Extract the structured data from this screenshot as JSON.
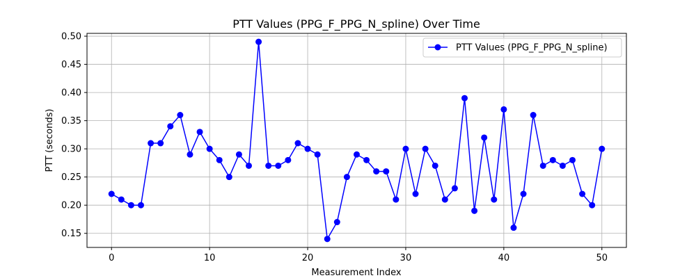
{
  "chart_data": {
    "type": "line",
    "title": "PTT Values (PPG_F_PPG_N_spline) Over Time",
    "xlabel": "Measurement Index",
    "ylabel": "PTT (seconds)",
    "xlim": [
      -2.5,
      52.5
    ],
    "ylim": [
      0.125,
      0.505
    ],
    "xticks": [
      0,
      10,
      20,
      30,
      40,
      50
    ],
    "yticks": [
      0.15,
      0.2,
      0.25,
      0.3,
      0.35,
      0.4,
      0.45,
      0.5
    ],
    "xtick_labels": [
      "0",
      "10",
      "20",
      "30",
      "40",
      "50"
    ],
    "ytick_labels": [
      "0.15",
      "0.20",
      "0.25",
      "0.30",
      "0.35",
      "0.40",
      "0.45",
      "0.50"
    ],
    "grid": true,
    "legend_position": "top-right",
    "series": [
      {
        "name": "PTT Values (PPG_F_PPG_N_spline)",
        "color": "#0000ff",
        "marker": "circle",
        "x": [
          0,
          1,
          2,
          3,
          4,
          5,
          6,
          7,
          8,
          9,
          10,
          11,
          12,
          13,
          14,
          15,
          16,
          17,
          18,
          19,
          20,
          21,
          22,
          23,
          24,
          25,
          26,
          27,
          28,
          29,
          30,
          31,
          32,
          33,
          34,
          35,
          36,
          37,
          38,
          39,
          40,
          41,
          42,
          43,
          44,
          45,
          46,
          47,
          48,
          49,
          50
        ],
        "values": [
          0.22,
          0.21,
          0.2,
          0.2,
          0.31,
          0.31,
          0.34,
          0.36,
          0.29,
          0.33,
          0.3,
          0.28,
          0.25,
          0.29,
          0.27,
          0.49,
          0.27,
          0.27,
          0.28,
          0.31,
          0.3,
          0.29,
          0.14,
          0.17,
          0.25,
          0.29,
          0.28,
          0.26,
          0.26,
          0.21,
          0.3,
          0.22,
          0.3,
          0.27,
          0.21,
          0.23,
          0.39,
          0.19,
          0.32,
          0.21,
          0.37,
          0.16,
          0.22,
          0.36,
          0.27,
          0.28,
          0.27,
          0.28,
          0.22,
          0.2,
          0.3
        ]
      }
    ]
  }
}
